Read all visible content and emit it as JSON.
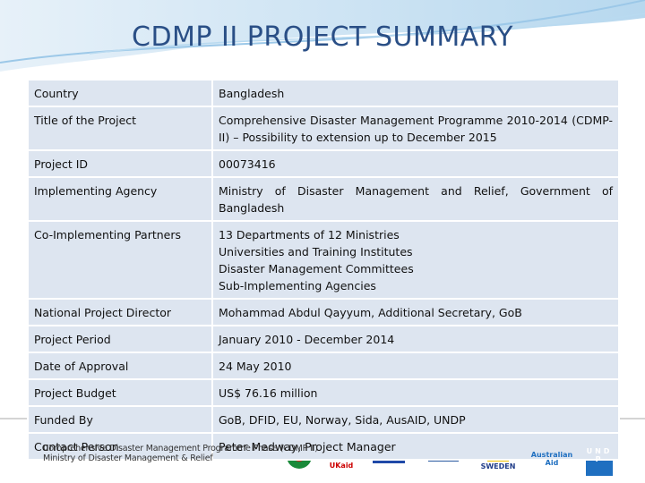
{
  "header": {
    "title": "CDMP II PROJECT SUMMARY"
  },
  "table": {
    "rows": [
      {
        "label": "Country",
        "value": "Bangladesh"
      },
      {
        "label": "Title of the Project",
        "value": "Comprehensive Disaster Management Programme 2010-2014 (CDMP-II) – Possibility to extension up to December 2015"
      },
      {
        "label": "Project ID",
        "value": "00073416"
      },
      {
        "label": "Implementing Agency",
        "value": "Ministry of Disaster Management and Relief, Government of Bangladesh"
      },
      {
        "label": "Co-Implementing Partners",
        "value": [
          "13 Departments of 12 Ministries",
          "Universities and Training Institutes",
          "Disaster Management Committees",
          "Sub-Implementing Agencies"
        ]
      },
      {
        "label": "National Project Director",
        "value": "Mohammad Abdul Qayyum, Additional Secretary, GoB"
      },
      {
        "label": "Project Period",
        "value": "January 2010 - December 2014"
      },
      {
        "label": "Date of Approval",
        "value": "24 May 2010"
      },
      {
        "label": "Project Budget",
        "value": "US$ 76.16 million"
      },
      {
        "label": "Funded By",
        "value": "GoB, DFID, EU, Norway, Sida, AusAID, UNDP"
      },
      {
        "label": "Contact Person",
        "value": "Peter Medway, Project Manager"
      }
    ]
  },
  "footer": {
    "lines": [
      "Comprehensive Disaster Management Programme Phase (CDMP II)",
      "Ministry of Disaster Management & Relief"
    ],
    "logos": [
      "UKaid",
      "European Union",
      "NORWEGIAN EMBASSY",
      "SWEDEN",
      "Australian Aid",
      "UNDP"
    ]
  }
}
